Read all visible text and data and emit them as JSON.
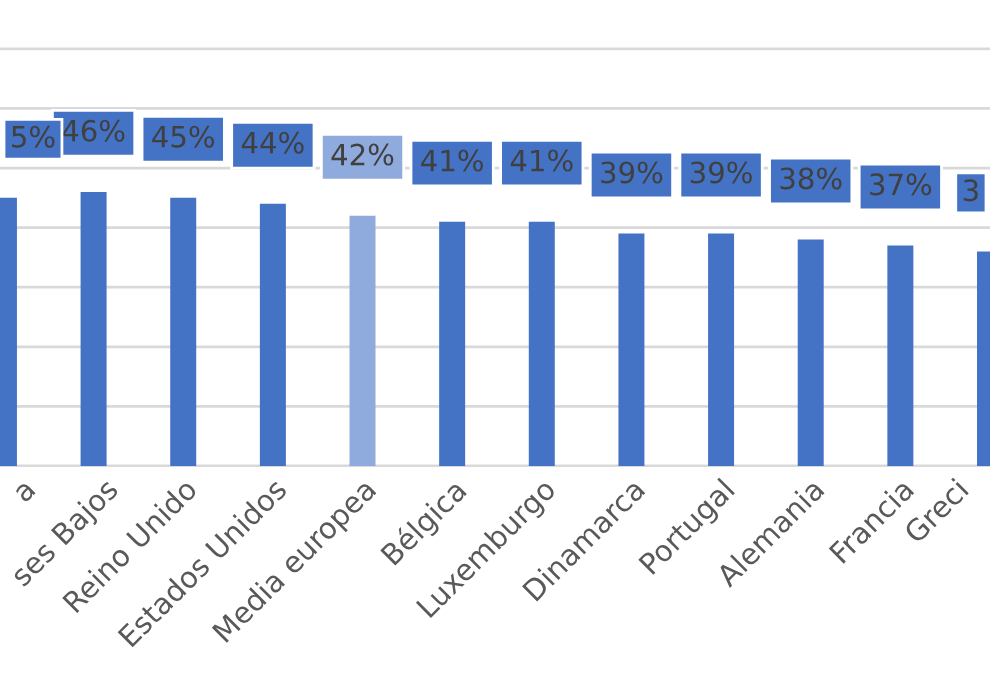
{
  "chart_data": {
    "type": "bar",
    "categories": [
      "a",
      "ses Bajos",
      "Reino Unido",
      "Estados Unidos",
      "Media europea",
      "Bélgica",
      "Luxemburgo",
      "Dinamarca",
      "Portugal",
      "Alemania",
      "Francia",
      "Greci"
    ],
    "values": [
      45,
      46,
      45,
      44,
      42,
      41,
      41,
      39,
      39,
      38,
      37,
      36
    ],
    "colors": [
      "#4472c4",
      "#4472c4",
      "#4472c4",
      "#4472c4",
      "#8faadc",
      "#4472c4",
      "#4472c4",
      "#4472c4",
      "#4472c4",
      "#4472c4",
      "#4472c4",
      "#4472c4"
    ],
    "value_labels": [
      null,
      "46%",
      "45%",
      "44%",
      "42%",
      "41%",
      "41%",
      "39%",
      "39%",
      "38%",
      "37%",
      null
    ],
    "annotations": [
      "5%",
      "3"
    ],
    "grid": "y",
    "tick_labels": "x",
    "legend": false
  }
}
